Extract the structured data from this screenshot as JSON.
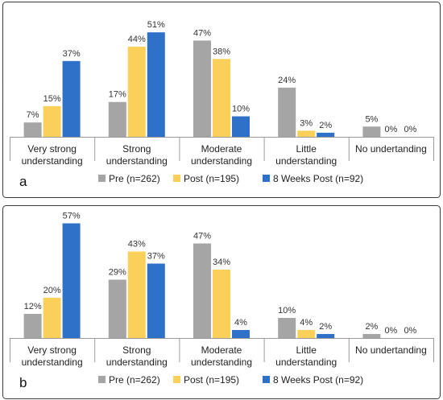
{
  "chart_data": [
    {
      "type": "bar",
      "panel_label": "a",
      "categories": [
        [
          "Very strong",
          "understanding"
        ],
        [
          "Strong",
          "understanding"
        ],
        [
          "Moderate",
          "understanding"
        ],
        [
          "Little",
          "understanding"
        ],
        [
          "No undertanding"
        ]
      ],
      "series": [
        {
          "name": "Pre (n=262)",
          "color": "#a5a5a5",
          "values": [
            7,
            17,
            47,
            24,
            5
          ],
          "labels": [
            "7%",
            "17%",
            "47%",
            "24%",
            "5%"
          ]
        },
        {
          "name": "Post (n=195)",
          "color": "#fbd05a",
          "values": [
            15,
            44,
            38,
            3,
            0
          ],
          "labels": [
            "15%",
            "44%",
            "38%",
            "3%",
            "0%"
          ]
        },
        {
          "name": "8 Weeks Post (n=92)",
          "color": "#2f71c8",
          "values": [
            37,
            51,
            10,
            2,
            0
          ],
          "labels": [
            "37%",
            "51%",
            "10%",
            "2%",
            "0%"
          ]
        }
      ],
      "ylim": [
        0,
        55
      ],
      "grid": false,
      "legend_position": "bottom"
    },
    {
      "type": "bar",
      "panel_label": "b",
      "categories": [
        [
          "Very strong",
          "understanding"
        ],
        [
          "Strong",
          "understanding"
        ],
        [
          "Moderate",
          "understanding"
        ],
        [
          "Little",
          "understanding"
        ],
        [
          "No undertanding"
        ]
      ],
      "series": [
        {
          "name": "Pre (n=262)",
          "color": "#a5a5a5",
          "values": [
            12,
            29,
            47,
            10,
            2
          ],
          "labels": [
            "12%",
            "29%",
            "47%",
            "10%",
            "2%"
          ]
        },
        {
          "name": "Post (n=195)",
          "color": "#fbd05a",
          "values": [
            20,
            43,
            34,
            4,
            0
          ],
          "labels": [
            "20%",
            "43%",
            "34%",
            "4%",
            "0%"
          ]
        },
        {
          "name": "8 Weeks Post (n=92)",
          "color": "#2f71c8",
          "values": [
            57,
            37,
            4,
            2,
            0
          ],
          "labels": [
            "57%",
            "37%",
            "4%",
            "2%",
            "0%"
          ]
        }
      ],
      "ylim": [
        0,
        60
      ],
      "grid": false,
      "legend_position": "bottom"
    }
  ]
}
